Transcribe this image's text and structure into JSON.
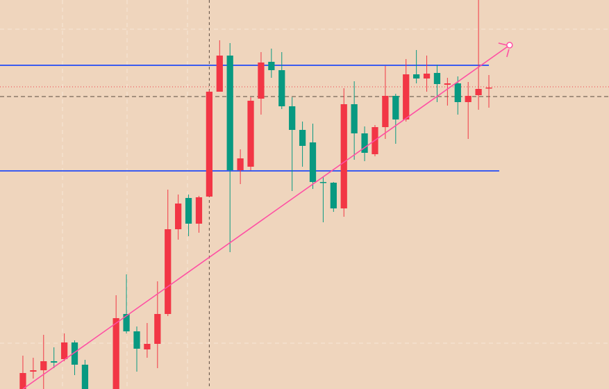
{
  "chart_data": {
    "type": "candlestick",
    "up_color": "#f23645",
    "down_color": "#089981",
    "x": [
      0,
      1,
      2,
      3,
      4,
      5,
      6,
      9,
      10,
      11,
      12,
      13,
      14,
      15,
      16,
      17,
      18,
      19,
      20,
      21,
      22,
      23,
      24,
      25,
      26,
      27,
      28,
      29,
      30,
      31,
      32,
      33,
      34,
      35,
      36,
      37,
      38,
      39,
      40,
      41,
      42,
      43,
      44,
      45
    ],
    "open": [
      0,
      25,
      27,
      40,
      43,
      67,
      35,
      0,
      108,
      83,
      57,
      65,
      108,
      230,
      275,
      238,
      277,
      428,
      480,
      315,
      320,
      418,
      471,
      459,
      407,
      373,
      355,
      298,
      297,
      260,
      410,
      368,
      338,
      377,
      422,
      388,
      453,
      447,
      455,
      438,
      440,
      413,
      423,
      433
    ],
    "high": [
      48,
      45,
      78,
      60,
      80,
      70,
      42,
      135,
      165,
      90,
      95,
      155,
      287,
      280,
      280,
      278,
      430,
      502,
      498,
      345,
      420,
      485,
      490,
      485,
      420,
      385,
      382,
      305,
      298,
      433,
      443,
      378,
      380,
      465,
      425,
      475,
      488,
      480,
      467,
      448,
      450,
      442,
      560,
      452
    ],
    "low": [
      0,
      15,
      0,
      30,
      40,
      20,
      0,
      0,
      80,
      25,
      45,
      30,
      105,
      215,
      220,
      225,
      277,
      428,
      197,
      295,
      315,
      395,
      448,
      403,
      285,
      320,
      288,
      240,
      255,
      248,
      330,
      328,
      335,
      360,
      353,
      385,
      440,
      428,
      413,
      408,
      395,
      360,
      402,
      405
    ],
    "close": [
      23,
      27,
      40,
      38,
      67,
      35,
      0,
      102,
      83,
      58,
      65,
      108,
      230,
      267,
      238,
      276,
      428,
      480,
      315,
      332,
      415,
      470,
      459,
      407,
      373,
      350,
      298,
      297,
      260,
      410,
      368,
      340,
      377,
      422,
      388,
      453,
      447,
      454,
      439,
      440,
      413,
      422,
      432,
      434
    ],
    "xlim": [
      -2.21,
      56.6
    ],
    "ylim": [
      0,
      560
    ],
    "levels": [
      {
        "value": 466,
        "x_end": 45,
        "color": "#3a5bf0"
      },
      {
        "value": 314,
        "x_end": 46,
        "color": "#3a5bf0"
      }
    ],
    "trendline": {
      "x": [
        0,
        47
      ],
      "y": [
        0,
        495
      ],
      "color": "#ff4fa3"
    },
    "crosshair": {
      "x": 18,
      "y": 421
    },
    "last_price": 435
  }
}
